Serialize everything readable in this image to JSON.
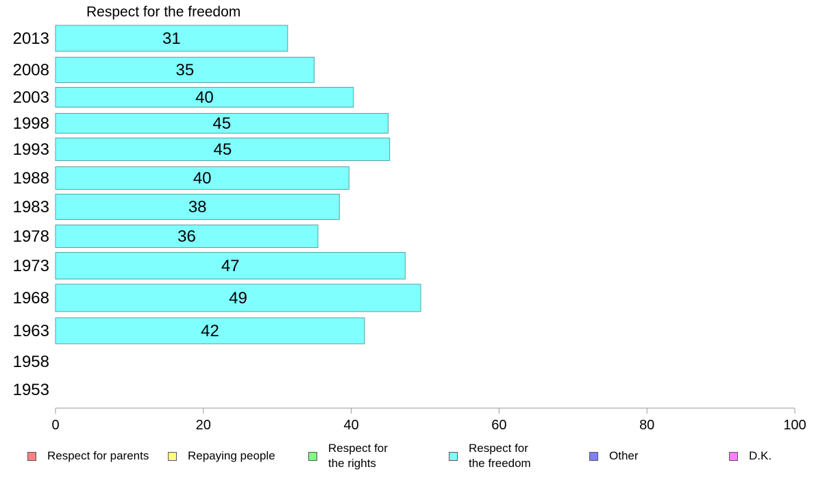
{
  "chart_data": {
    "type": "bar",
    "orientation": "horizontal",
    "title": "Respect for the freedom",
    "categories": [
      "2013",
      "2008",
      "2003",
      "1998",
      "1993",
      "1988",
      "1983",
      "1978",
      "1973",
      "1968",
      "1963",
      "1958",
      "1953"
    ],
    "series": [
      {
        "name": "Respect for the freedom",
        "color": "#80ffff",
        "values": [
          31.4,
          35,
          40.3,
          45,
          45.2,
          39.7,
          38.4,
          35.5,
          47.3,
          49.4,
          41.8,
          null,
          null
        ],
        "labels": [
          "31",
          "35",
          "40",
          "45",
          "45",
          "40",
          "38",
          "36",
          "47",
          "49",
          "42",
          "",
          ""
        ]
      }
    ],
    "xlim": [
      0,
      100
    ],
    "xticks": [
      "0",
      "20",
      "40",
      "60",
      "80",
      "100"
    ],
    "grid": false,
    "legend_position": "bottom"
  },
  "legend": [
    {
      "label": "Respect for parents",
      "color": "#ff8080"
    },
    {
      "label": "Repaying people",
      "color": "#ffff80"
    },
    {
      "label": "Respect for\nthe rights",
      "color": "#80ff80"
    },
    {
      "label": "Respect for\nthe freedom",
      "color": "#80ffff"
    },
    {
      "label": "Other",
      "color": "#8080ff"
    },
    {
      "label": "D.K.",
      "color": "#ff80ff"
    }
  ]
}
